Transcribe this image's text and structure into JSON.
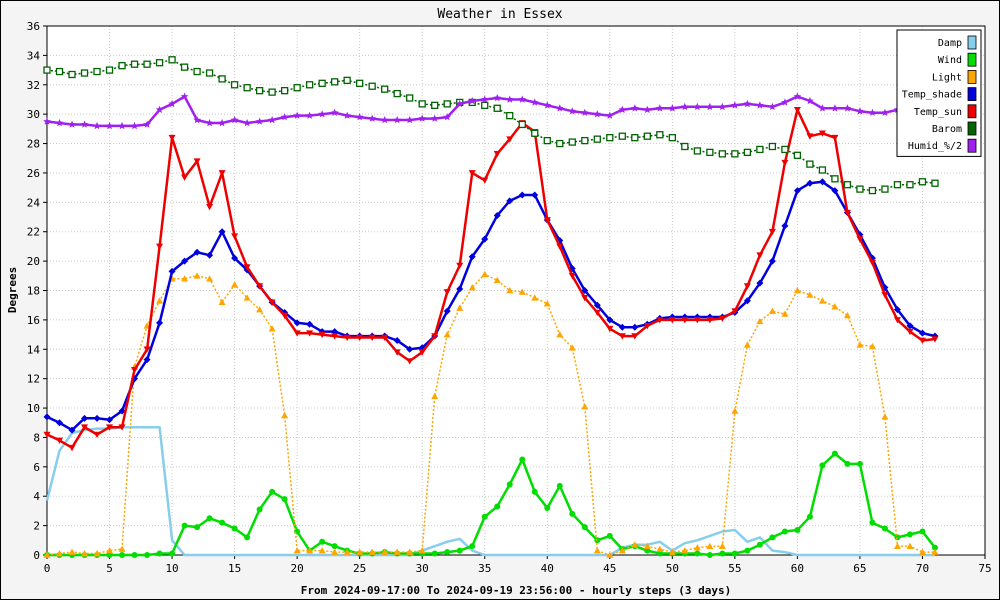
{
  "chart_data": {
    "type": "line",
    "title": "Weather in Essex",
    "xlabel": "From 2024-09-17:00 To 2024-09-19 23:56:00 - hourly steps (3 days)",
    "ylabel": "Degrees",
    "xlim": [
      0,
      75
    ],
    "ylim": [
      0,
      36
    ],
    "x_ticks": [
      0,
      5,
      10,
      15,
      20,
      25,
      30,
      35,
      40,
      45,
      50,
      55,
      60,
      65,
      70,
      75
    ],
    "y_ticks": [
      0,
      2,
      4,
      6,
      8,
      10,
      12,
      14,
      16,
      18,
      20,
      22,
      24,
      26,
      28,
      30,
      32,
      34,
      36
    ],
    "grid": true,
    "legend_position": "top-right",
    "series": [
      {
        "name": "Damp",
        "color": "#87ceeb",
        "marker": "none",
        "dash": false,
        "values": [
          3.7,
          7.1,
          8.3,
          8.5,
          8.6,
          8.6,
          8.7,
          8.7,
          8.7,
          8.7,
          1.0,
          0,
          0,
          0,
          0,
          0,
          0,
          0,
          0,
          0,
          0,
          0,
          0,
          0,
          0,
          0,
          0,
          0,
          0,
          0,
          0.3,
          0.6,
          0.9,
          1.1,
          0.3,
          0,
          0,
          0,
          0,
          0,
          0,
          0,
          0,
          0,
          0,
          0,
          0.5,
          0.7,
          0.7,
          0.9,
          0.3,
          0.8,
          1.0,
          1.3,
          1.6,
          1.7,
          0.9,
          1.2,
          0.3,
          0.2,
          0,
          0,
          0,
          0,
          0,
          0,
          0,
          0,
          0,
          0,
          0,
          0
        ]
      },
      {
        "name": "Wind",
        "color": "#00dd00",
        "marker": "circle",
        "dash": false,
        "values": [
          0,
          0,
          0,
          0,
          0,
          0,
          0,
          0,
          0,
          0.1,
          0.1,
          2.0,
          1.9,
          2.5,
          2.2,
          1.8,
          1.2,
          3.1,
          4.3,
          3.8,
          1.6,
          0.3,
          0.9,
          0.6,
          0.3,
          0.1,
          0.1,
          0.2,
          0.1,
          0.1,
          0.1,
          0.1,
          0.2,
          0.3,
          0.6,
          2.6,
          3.3,
          4.8,
          6.5,
          4.3,
          3.2,
          4.7,
          2.8,
          1.9,
          1.0,
          1.3,
          0.4,
          0.6,
          0.3,
          0.1,
          0.1,
          0.1,
          0.1,
          0,
          0.1,
          0.1,
          0.3,
          0.7,
          1.2,
          1.6,
          1.7,
          2.6,
          6.1,
          6.9,
          6.2,
          6.2,
          2.2,
          1.8,
          1.2,
          1.4,
          1.6,
          0.5
        ]
      },
      {
        "name": "Light",
        "color": "#ffa500",
        "marker": "triangle",
        "dash": true,
        "values": [
          0,
          0.1,
          0.2,
          0.1,
          0.1,
          0.3,
          0.4,
          12.8,
          15.6,
          17.3,
          18.8,
          18.8,
          19.0,
          18.8,
          17.2,
          18.4,
          17.5,
          16.7,
          15.4,
          9.5,
          0.3,
          0.3,
          0.3,
          0.2,
          0.2,
          0.2,
          0.2,
          0.2,
          0.2,
          0.2,
          0.3,
          10.8,
          15.0,
          16.8,
          18.2,
          19.1,
          18.7,
          18.0,
          17.9,
          17.5,
          17.1,
          15.0,
          14.1,
          10.1,
          0.3,
          0,
          0.3,
          0.7,
          0.6,
          0.4,
          0.2,
          0.3,
          0.5,
          0.6,
          0.6,
          9.8,
          14.3,
          15.9,
          16.6,
          16.4,
          18.0,
          17.7,
          17.3,
          16.9,
          16.3,
          14.3,
          14.2,
          9.4,
          0.6,
          0.6,
          0.2,
          0.2
        ]
      },
      {
        "name": "Temp_shade",
        "color": "#0000dd",
        "marker": "diamond",
        "dash": false,
        "values": [
          9.4,
          9.0,
          8.5,
          9.3,
          9.3,
          9.2,
          9.8,
          12.0,
          13.3,
          15.8,
          19.3,
          20.0,
          20.6,
          20.4,
          22.0,
          20.2,
          19.4,
          18.3,
          17.2,
          16.5,
          15.8,
          15.7,
          15.2,
          15.2,
          14.9,
          14.9,
          14.9,
          14.9,
          14.6,
          14.0,
          14.1,
          14.9,
          16.6,
          18.1,
          20.3,
          21.5,
          23.1,
          24.1,
          24.5,
          24.5,
          22.8,
          21.4,
          19.5,
          18.0,
          17.0,
          16.0,
          15.5,
          15.5,
          15.7,
          16.1,
          16.2,
          16.2,
          16.2,
          16.2,
          16.2,
          16.5,
          17.3,
          18.5,
          20.0,
          22.4,
          24.8,
          25.3,
          25.4,
          24.8,
          23.3,
          21.8,
          20.2,
          18.2,
          16.7,
          15.6,
          15.1,
          14.9
        ]
      },
      {
        "name": "Temp_sun",
        "color": "#ee0000",
        "marker": "triangle-down",
        "dash": false,
        "values": [
          8.2,
          7.8,
          7.3,
          8.7,
          8.2,
          8.7,
          8.7,
          12.6,
          14.0,
          21.0,
          28.4,
          25.7,
          26.8,
          23.7,
          26.0,
          21.7,
          19.6,
          18.3,
          17.2,
          16.3,
          15.1,
          15.1,
          15.0,
          14.9,
          14.8,
          14.8,
          14.8,
          14.8,
          13.8,
          13.2,
          13.8,
          14.9,
          17.9,
          19.7,
          26.0,
          25.5,
          27.3,
          28.3,
          29.4,
          28.8,
          22.8,
          21.0,
          19.0,
          17.5,
          16.5,
          15.4,
          14.9,
          14.9,
          15.6,
          16.0,
          16.0,
          16.0,
          16.0,
          16.0,
          16.1,
          16.6,
          18.3,
          20.4,
          22.0,
          26.7,
          30.3,
          28.5,
          28.7,
          28.4,
          23.3,
          21.5,
          19.9,
          17.7,
          16.0,
          15.2,
          14.6,
          14.7
        ]
      },
      {
        "name": "Barom",
        "color": "#006400",
        "marker": "square",
        "dash": true,
        "values": [
          33.0,
          32.9,
          32.7,
          32.8,
          32.9,
          33.0,
          33.3,
          33.4,
          33.4,
          33.5,
          33.7,
          33.2,
          32.9,
          32.8,
          32.4,
          32.0,
          31.8,
          31.6,
          31.5,
          31.6,
          31.8,
          32.0,
          32.1,
          32.2,
          32.3,
          32.1,
          31.9,
          31.7,
          31.4,
          31.1,
          30.7,
          30.6,
          30.7,
          30.8,
          30.8,
          30.6,
          30.4,
          29.9,
          29.3,
          28.7,
          28.2,
          28.0,
          28.1,
          28.2,
          28.3,
          28.4,
          28.5,
          28.4,
          28.5,
          28.6,
          28.4,
          27.8,
          27.5,
          27.4,
          27.3,
          27.3,
          27.4,
          27.6,
          27.8,
          27.6,
          27.2,
          26.6,
          26.2,
          25.6,
          25.2,
          24.9,
          24.8,
          24.9,
          25.2,
          25.2,
          25.4,
          25.3
        ]
      },
      {
        "name": "Humid_%/2",
        "color": "#a020f0",
        "marker": "star",
        "dash": false,
        "values": [
          29.5,
          29.4,
          29.3,
          29.3,
          29.2,
          29.2,
          29.2,
          29.2,
          29.3,
          30.3,
          30.7,
          31.2,
          29.6,
          29.4,
          29.4,
          29.6,
          29.4,
          29.5,
          29.6,
          29.8,
          29.9,
          29.9,
          30.0,
          30.1,
          29.9,
          29.8,
          29.7,
          29.6,
          29.6,
          29.6,
          29.7,
          29.7,
          29.8,
          30.7,
          30.9,
          31.0,
          31.1,
          31.0,
          31.0,
          30.8,
          30.6,
          30.4,
          30.2,
          30.1,
          30.0,
          29.9,
          30.3,
          30.4,
          30.3,
          30.4,
          30.4,
          30.5,
          30.5,
          30.5,
          30.5,
          30.6,
          30.7,
          30.6,
          30.5,
          30.8,
          31.2,
          30.9,
          30.4,
          30.4,
          30.4,
          30.2,
          30.1,
          30.1,
          30.3,
          30.6,
          30.7,
          30.9
        ]
      }
    ]
  }
}
